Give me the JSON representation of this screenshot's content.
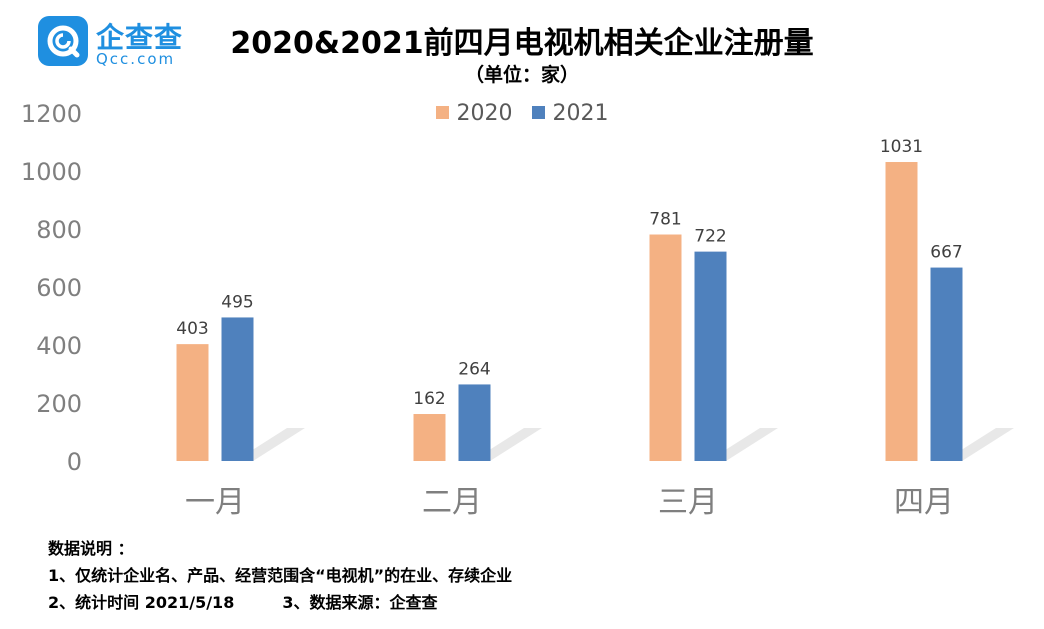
{
  "logo": {
    "name": "企查查",
    "domain": "Qcc.com"
  },
  "colors": {
    "s2020": "#f4b183",
    "s2021": "#4f81bd",
    "axis_text": "#7f7f7f",
    "label_text": "#404040"
  },
  "chart_data": {
    "type": "bar",
    "title": "2020&2021前四月电视机相关企业注册量",
    "subtitle": "（单位：家）",
    "categories": [
      "一月",
      "二月",
      "三月",
      "四月"
    ],
    "series": [
      {
        "name": "2020",
        "values": [
          403,
          162,
          781,
          1031
        ]
      },
      {
        "name": "2021",
        "values": [
          495,
          264,
          722,
          667
        ]
      }
    ],
    "ylim": [
      0,
      1200
    ],
    "yticks": [
      0,
      200,
      400,
      600,
      800,
      1000,
      1200
    ],
    "grid": false,
    "legend_position": "top"
  },
  "notes": {
    "heading": "数据说明 ：",
    "line1": "1、仅统计企业名、产品、经营范围含“电视机”的在业、存续企业",
    "line2a": "2、统计时间 2021/5/18",
    "line2b": "3、数据来源：企查查"
  }
}
